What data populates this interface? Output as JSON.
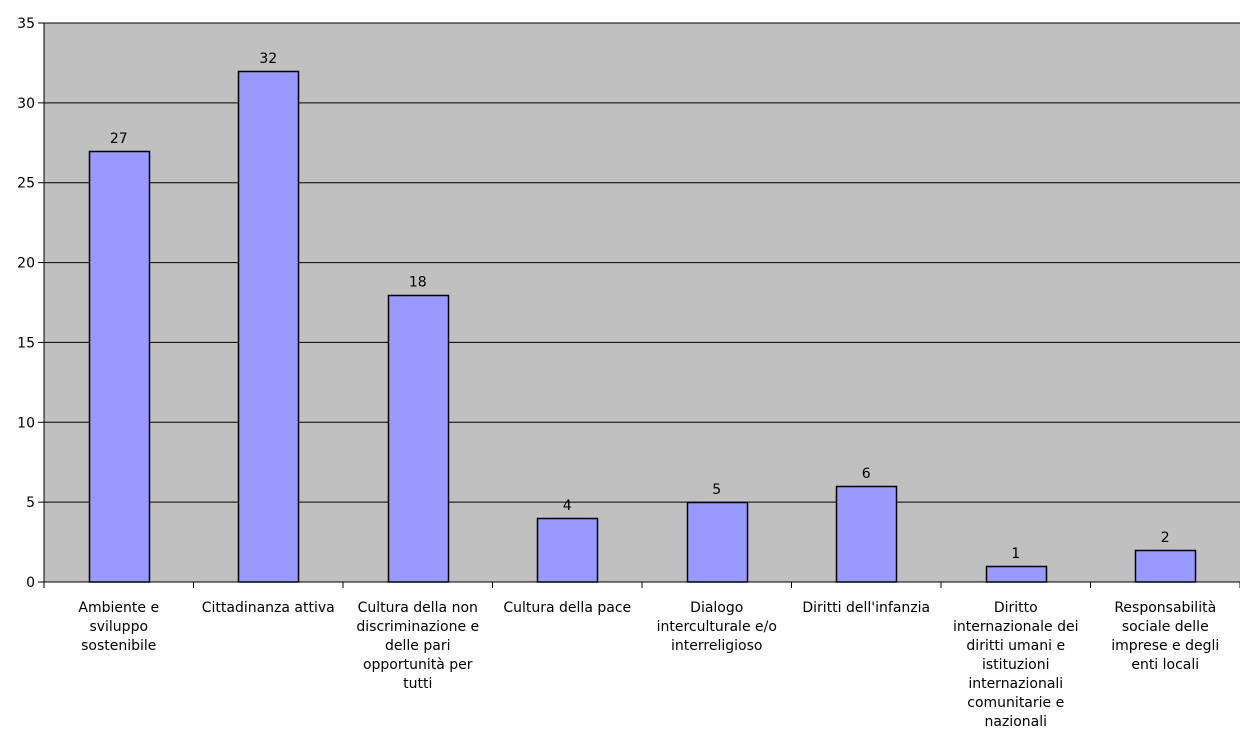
{
  "chart_data": {
    "type": "bar",
    "title": "",
    "xlabel": "",
    "ylabel": "",
    "ylim": [
      0,
      35
    ],
    "yticks": [
      0,
      5,
      10,
      15,
      20,
      25,
      30,
      35
    ],
    "grid": true,
    "legend": "none",
    "categories": [
      "Ambiente e sviluppo sostenibile",
      "Cittadinanza attiva",
      "Cultura della non discriminazione e delle pari opportunità per tutti",
      "Cultura della pace",
      "Dialogo interculturale e/o interreligioso",
      "Diritti dell'infanzia",
      "Diritto internazionale dei diritti umani e istituzioni internazionali comunitarie e nazionali",
      "Responsabilità sociale delle imprese e degli enti locali"
    ],
    "category_lines": [
      [
        "Ambiente e",
        "sviluppo",
        "sostenibile"
      ],
      [
        "Cittadinanza attiva"
      ],
      [
        "Cultura della non",
        "discriminazione e",
        "delle pari",
        "opportunità per",
        "tutti"
      ],
      [
        "Cultura della pace"
      ],
      [
        "Dialogo",
        "interculturale e/o",
        "interreligioso"
      ],
      [
        "Diritti dell'infanzia"
      ],
      [
        "Diritto",
        "internazionale dei",
        "diritti umani e",
        "istituzioni",
        "internazionali",
        "comunitarie e",
        "nazionali"
      ],
      [
        "Responsabilità",
        "sociale delle",
        "imprese e degli",
        "enti locali"
      ]
    ],
    "values": [
      27,
      32,
      18,
      4,
      5,
      6,
      1,
      2
    ],
    "colors": {
      "plot_background": "#c0c0c0",
      "bar_fill": "#9999ff",
      "bar_stroke": "#000000",
      "gridline": "#000000"
    }
  }
}
